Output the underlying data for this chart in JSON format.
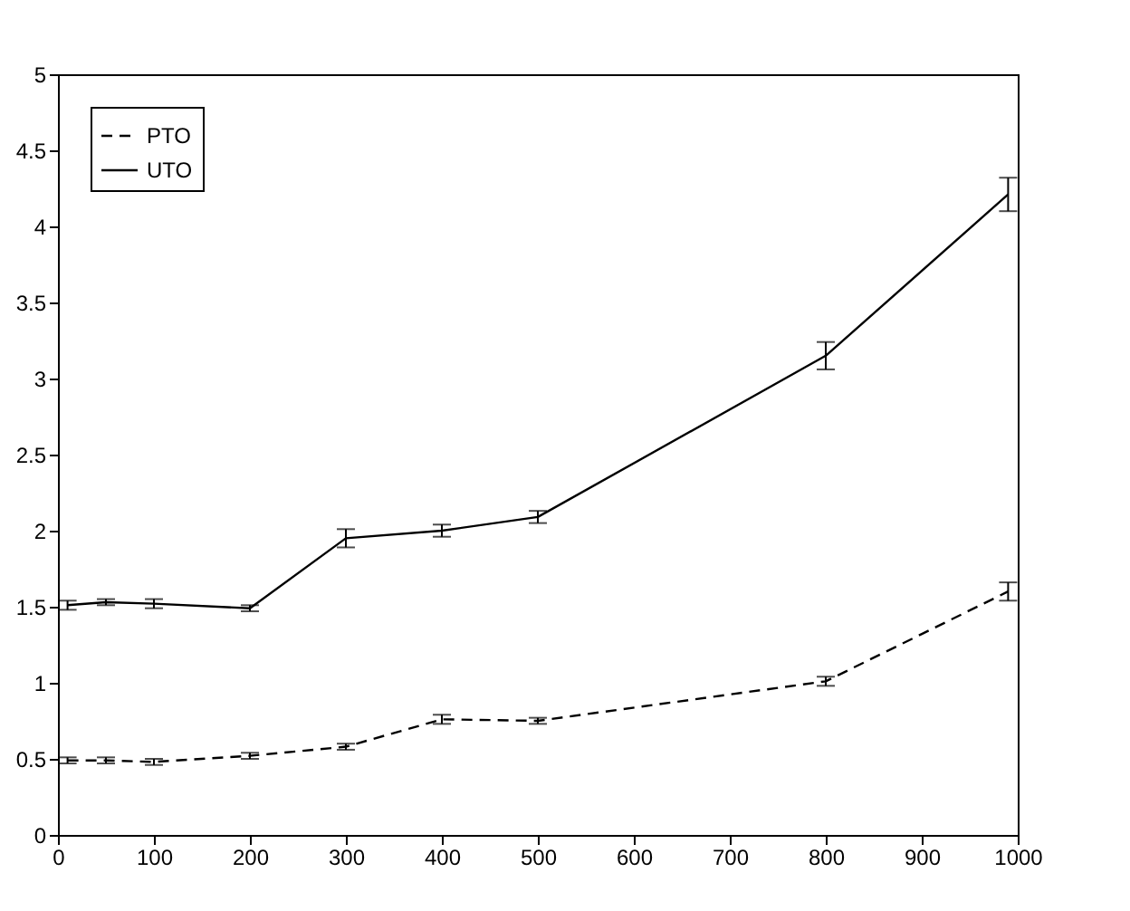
{
  "chart_data": {
    "type": "line",
    "x": [
      10,
      50,
      100,
      200,
      300,
      400,
      500,
      800,
      990
    ],
    "series": [
      {
        "name": "PTO",
        "color": "#000000",
        "line_style": "dashed",
        "values": [
          0.49,
          0.49,
          0.48,
          0.52,
          0.58,
          0.76,
          0.75,
          1.01,
          1.6
        ],
        "errors": [
          0.02,
          0.02,
          0.02,
          0.02,
          0.02,
          0.03,
          0.02,
          0.03,
          0.06
        ]
      },
      {
        "name": "UTO",
        "color": "#000000",
        "line_style": "solid",
        "values": [
          1.51,
          1.53,
          1.52,
          1.49,
          1.95,
          2.0,
          2.09,
          3.15,
          4.21
        ],
        "errors": [
          0.03,
          0.02,
          0.03,
          0.02,
          0.06,
          0.04,
          0.04,
          0.09,
          0.11
        ]
      }
    ],
    "xlim": [
      0,
      1000
    ],
    "xticks": [
      0,
      100,
      200,
      300,
      400,
      500,
      600,
      700,
      800,
      900,
      1000
    ],
    "ylim": [
      0,
      5
    ],
    "yticks": [
      0,
      0.5,
      1,
      1.5,
      2,
      2.5,
      3,
      3.5,
      4,
      4.5,
      5
    ],
    "grid": false,
    "legend": "top left",
    "marker": "none"
  }
}
